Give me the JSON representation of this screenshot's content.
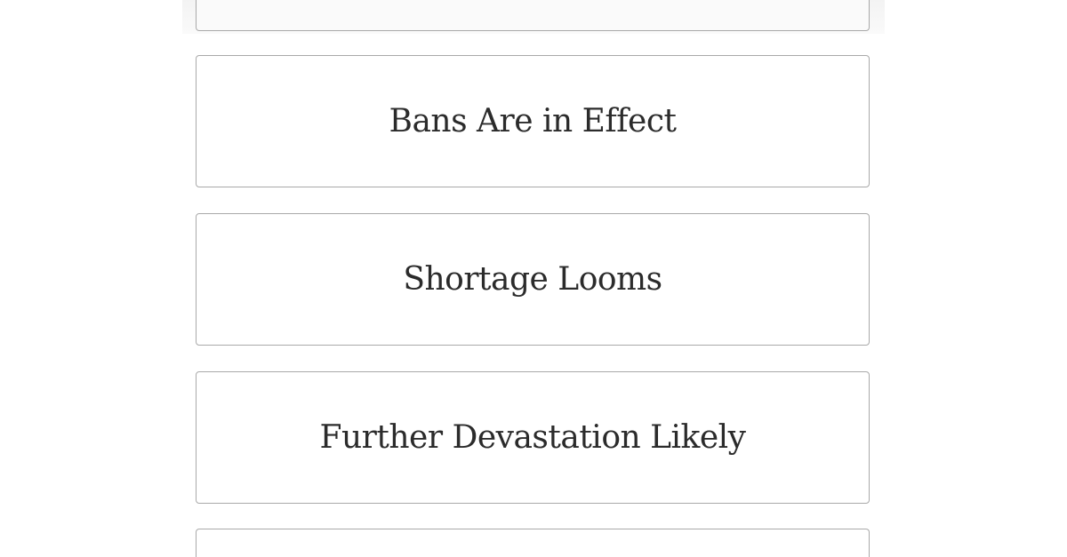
{
  "options": [
    {
      "label": "Bans Are in Effect"
    },
    {
      "label": "Shortage Looms"
    },
    {
      "label": "Further Devastation Likely"
    }
  ]
}
